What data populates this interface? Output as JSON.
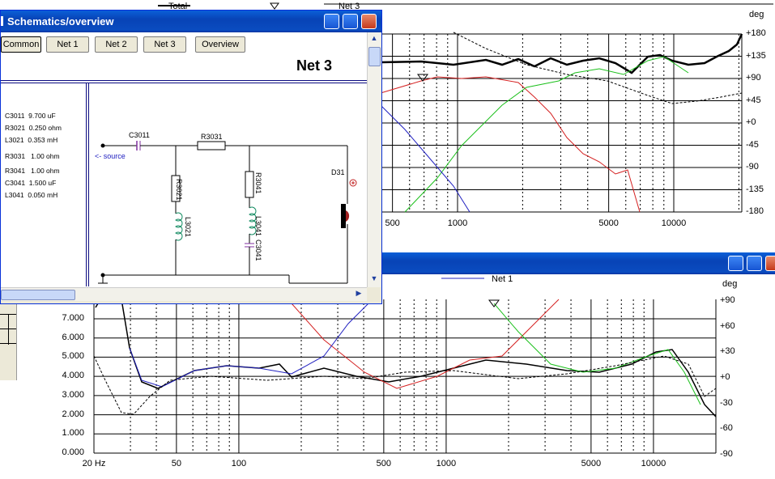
{
  "top_chart": {
    "legend_total": "Total",
    "legend_net": "Net 3",
    "right_unit": "deg",
    "phase_ticks": [
      "+180",
      "+135",
      "+90",
      "+45",
      "+0",
      "-45",
      "-90",
      "-135",
      "-180"
    ],
    "freq_ticks": [
      "500",
      "1000",
      "5000",
      "10000"
    ]
  },
  "bottom_window": {
    "legend_net1": "Net 1",
    "right_unit": "deg",
    "y_ticks": [
      "7.000",
      "6.000",
      "5.000",
      "4.000",
      "3.000",
      "2.000",
      "1.000",
      "0.000"
    ],
    "phase_ticks": [
      "+90",
      "+60",
      "+30",
      "+0",
      "-30",
      "-60",
      "-90"
    ],
    "freq_ticks": [
      "20 Hz",
      "50",
      "100",
      "500",
      "1000",
      "5000",
      "10000"
    ]
  },
  "schematic_window": {
    "title": "Schematics/overview",
    "buttons": [
      "Common",
      "Net 1",
      "Net 2",
      "Net 3",
      "Overview"
    ],
    "heading": "Net 3",
    "components": [
      {
        "name": "C3011",
        "value": "9.700 uF"
      },
      {
        "name": "R3021",
        "value": "0.250 ohm"
      },
      {
        "name": "L3021",
        "value": "0.353 mH"
      },
      {
        "name": "R3031",
        "value": "1.00 ohm"
      },
      {
        "name": "R3041",
        "value": "1.00 ohm"
      },
      {
        "name": "C3041",
        "value": "1.500 uF"
      },
      {
        "name": "L3041",
        "value": "0.050 mH"
      }
    ],
    "labels": {
      "c3011": "C3011",
      "r3031": "R3031",
      "r3021": "R3021",
      "l3021": "L3021",
      "r3041": "R3041",
      "l3041": "L3041",
      "c3041": "C3041",
      "d31": "D31",
      "source": "<- source",
      "plus": "⊕"
    }
  },
  "colors": {
    "title_blue": "#0a4cc0",
    "net_red": "#d42020",
    "net_green": "#1cc01c",
    "net_blue": "#2020c0",
    "grid": "#000000"
  }
}
